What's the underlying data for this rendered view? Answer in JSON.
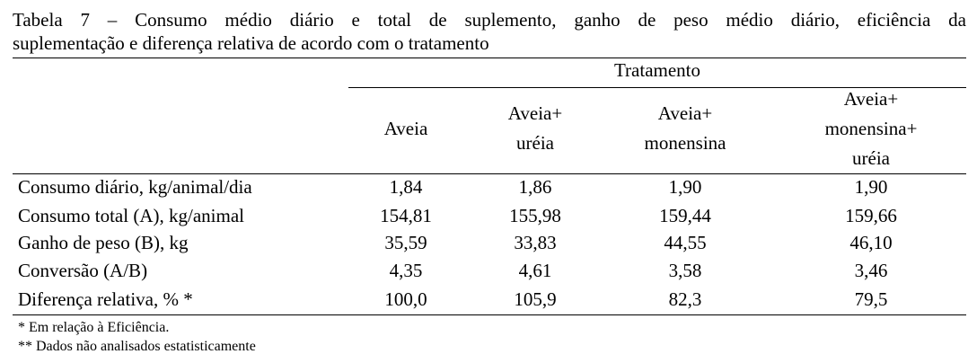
{
  "caption": {
    "lines": [
      "Tabela 7 – Consumo médio diário e total de suplemento, ganho de peso médio diário, eficiência da",
      "suplementação e diferença relativa de acordo com o tratamento"
    ]
  },
  "table": {
    "group_header": "Tratamento",
    "columns": [
      [
        "Aveia"
      ],
      [
        "Aveia+",
        "uréia"
      ],
      [
        "Aveia+",
        "monensina"
      ],
      [
        "Aveia+",
        "monensina+",
        "uréia"
      ]
    ],
    "rows": [
      [
        "Consumo diário, kg/animal/dia",
        "1,84",
        "1,86",
        "1,90",
        "1,90"
      ],
      [
        "Consumo total (A), kg/animal",
        "154,81",
        "155,98",
        "159,44",
        "159,66"
      ],
      [
        "Ganho de peso (B), kg",
        "35,59",
        "33,83",
        "44,55",
        "46,10"
      ],
      [
        "Conversão (A/B)",
        "4,35",
        "4,61",
        "3,58",
        "3,46"
      ],
      [
        "Diferença relativa, % *",
        "100,0",
        "105,9",
        "82,3",
        "79,5"
      ]
    ]
  },
  "footnotes": [
    "* Em relação à Eficiência.",
    "** Dados não analisados estatisticamente"
  ]
}
